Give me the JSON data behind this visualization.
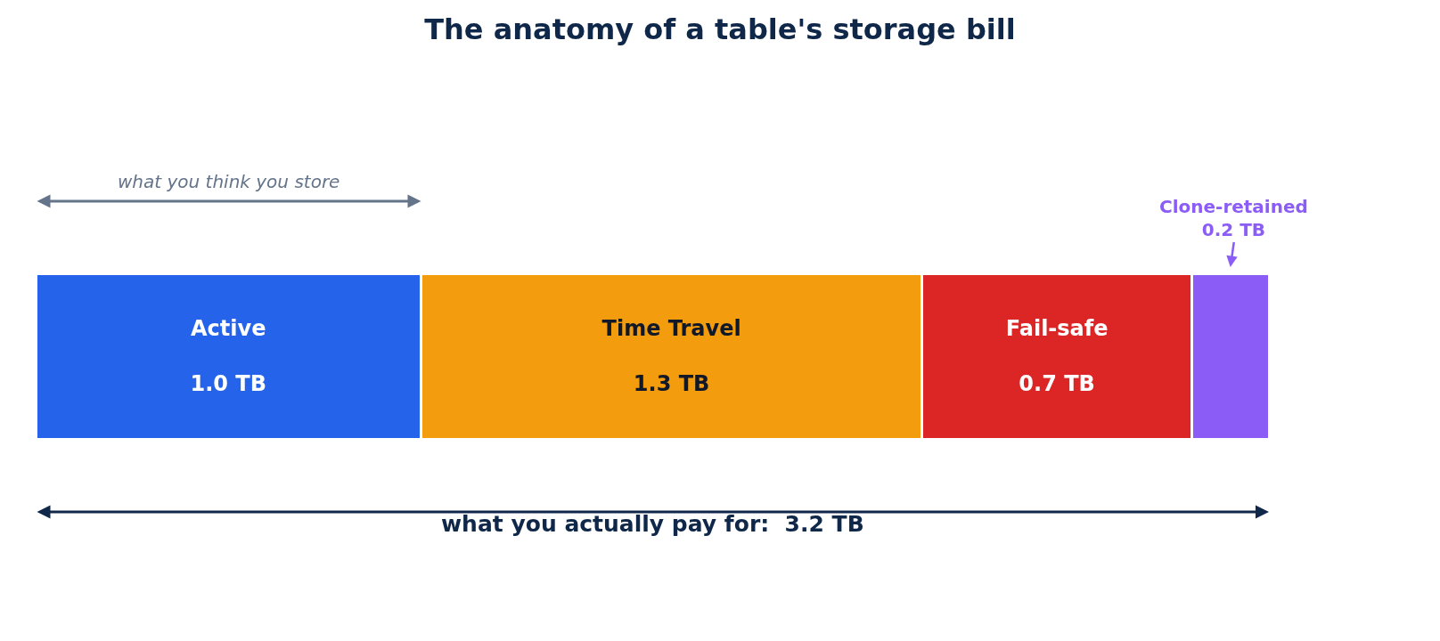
{
  "chart_data": {
    "type": "bar",
    "orientation": "horizontal",
    "stacked": true,
    "tick_labels": false,
    "title": "The anatomy of a table's storage bill",
    "categories": [
      null
    ],
    "series": [
      {
        "name": "Active",
        "color": "#2563eb",
        "values": [
          1.0
        ],
        "value_labels": [
          "1.0 TB"
        ]
      },
      {
        "name": "Time Travel",
        "color": "#f39c0e",
        "values": [
          1.3
        ],
        "value_labels": [
          "1.3 TB"
        ]
      },
      {
        "name": "Fail-safe",
        "color": "#dc2626",
        "values": [
          0.7
        ],
        "value_labels": [
          "0.7 TB"
        ]
      },
      {
        "name": "Clone-retained",
        "color": "#8b5cf6",
        "values": [
          0.2
        ],
        "value_labels": [
          "0.2 TB"
        ]
      }
    ],
    "annotations": [
      "what you think you store",
      "what you actually pay for:  3.2 TB"
    ]
  }
}
